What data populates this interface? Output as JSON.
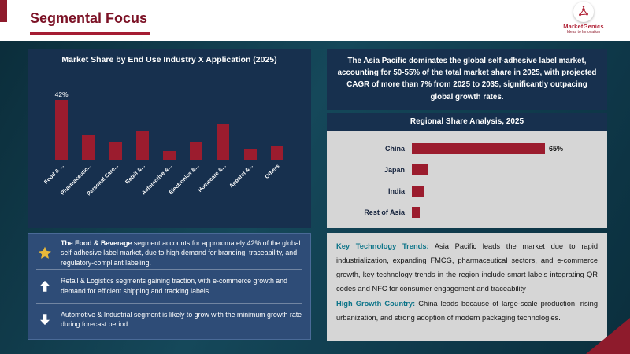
{
  "header": {
    "title": "Segmental Focus",
    "logo_text": "MarketGenics",
    "logo_tagline": "Ideas to Innovation"
  },
  "colors": {
    "accent_red": "#8e1b2c",
    "bar_red": "#9b1c2e",
    "navy_panel": "#17304e",
    "insight_blue": "#2e4c77",
    "gray_panel": "#d6d6d6",
    "teal_label": "#0c7489",
    "title_maroon": "#7c1226"
  },
  "chart_data": [
    {
      "type": "bar",
      "orientation": "vertical",
      "title": "Market Share by End Use Industry X Application (2025)",
      "categories": [
        "Food & ...",
        "Pharmaceutic...",
        "Personal Care...",
        "Retail &...",
        "Automotive &...",
        "Electronics &...",
        "Homecare &...",
        "Apparel &...",
        "Others"
      ],
      "values": [
        42,
        17,
        12,
        20,
        6,
        13,
        25,
        8,
        10
      ],
      "value_labels": [
        "42%",
        "",
        "",
        "",
        "",
        "",
        "",
        "",
        ""
      ],
      "ylim": [
        0,
        45
      ],
      "xlabel": "",
      "ylabel": "",
      "grid": false,
      "legend": "none"
    },
    {
      "type": "bar",
      "orientation": "horizontal",
      "title": "Regional Share Analysis, 2025",
      "categories": [
        "China",
        "Japan",
        "India",
        "Rest of Asia"
      ],
      "values": [
        65,
        8,
        6,
        4
      ],
      "value_labels": [
        "65%",
        "",
        "",
        ""
      ],
      "xlim": [
        0,
        72
      ],
      "grid": false,
      "legend": "none"
    }
  ],
  "left": {
    "insights": [
      {
        "icon": "star",
        "bold": "The Food & Beverage",
        "text": " segment accounts for approximately 42% of the global self-adhesive label market, due to high demand for branding, traceability, and regulatory-compliant labeling."
      },
      {
        "icon": "up-arrow",
        "bold": "",
        "text": "Retail & Logistics segments gaining traction, with e-commerce growth and demand for efficient shipping and tracking labels."
      },
      {
        "icon": "down-arrow",
        "bold": "",
        "text": "Automotive & Industrial segment is likely to grow with the minimum growth rate during forecast period"
      }
    ]
  },
  "right": {
    "headline": "The Asia Pacific dominates the global self-adhesive label market, accounting for 50-55% of the total market share in 2025, with projected CAGR of more than 7% from 2025 to 2035, significantly outpacing global growth rates.",
    "trends": [
      {
        "label": "Key Technology Trends:",
        "text": " Asia Pacific leads the market due to rapid industrialization, expanding FMCG, pharmaceutical sectors, and e-commerce growth, key technology trends in the region include smart labels integrating QR codes and NFC for consumer engagement and traceability"
      },
      {
        "label": "High Growth Country:",
        "text": " China leads because of large-scale production, rising urbanization, and strong adoption of modern packaging technologies."
      }
    ]
  }
}
